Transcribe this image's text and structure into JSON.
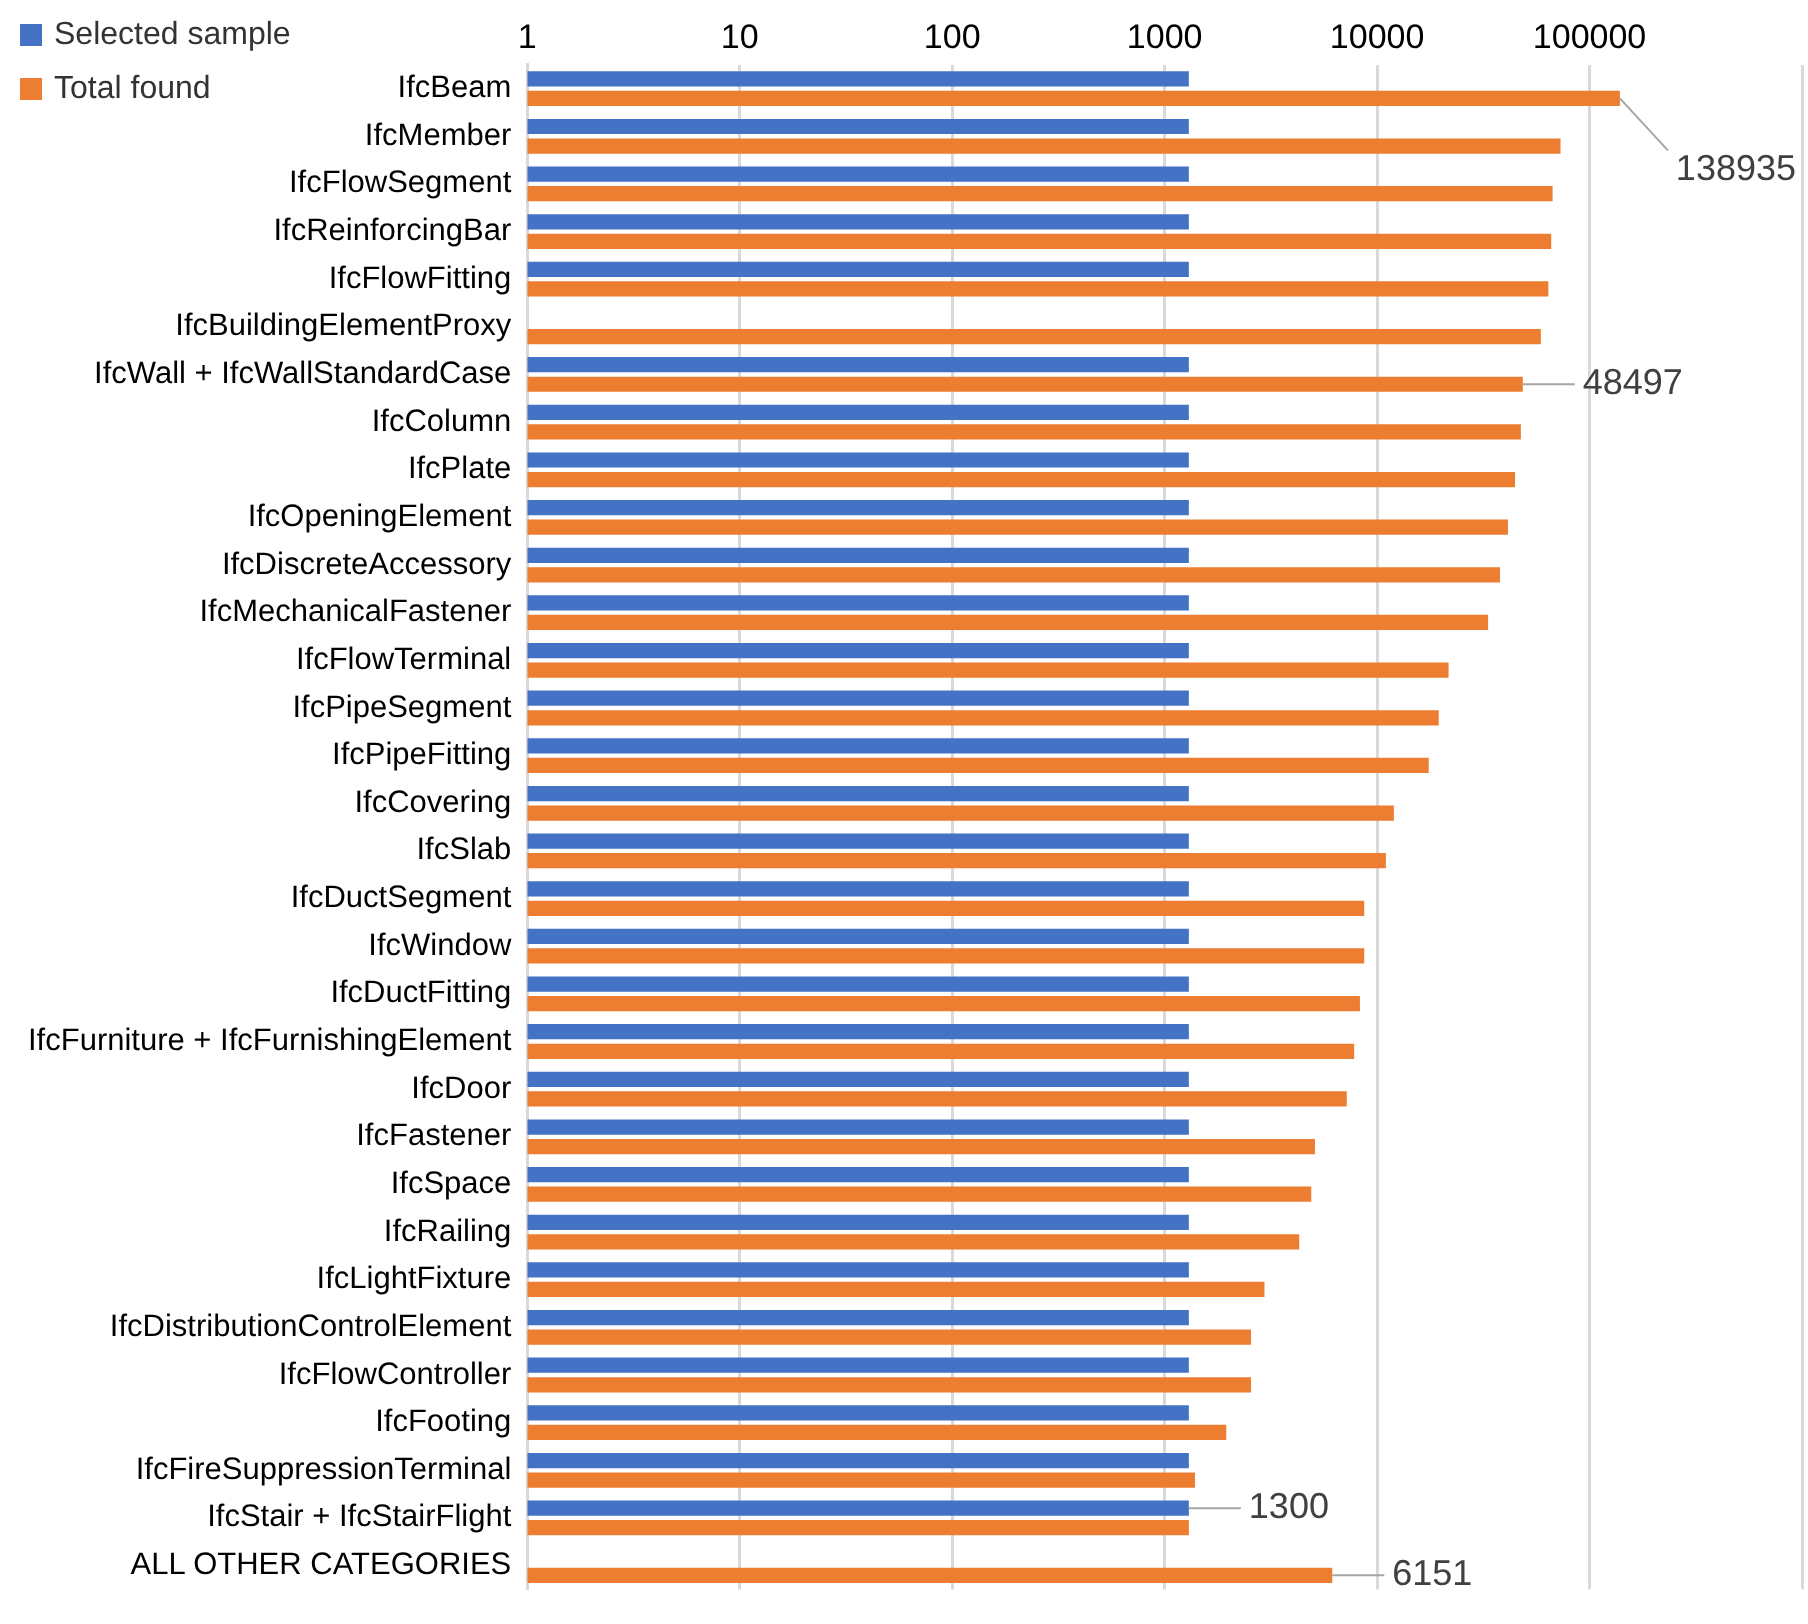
{
  "chart_data": {
    "type": "bar",
    "orientation": "horizontal",
    "log": "x",
    "legend": "top left",
    "grid": "x",
    "categories": [
      "IfcBeam",
      "IfcMember",
      "IfcFlowSegment",
      "IfcReinforcingBar",
      "IfcFlowFitting",
      "IfcBuildingElementProxy",
      "IfcWall + IfcWallStandardCase",
      "IfcColumn",
      "IfcPlate",
      "IfcOpeningElement",
      "IfcDiscreteAccessory",
      "IfcMechanicalFastener",
      "IfcFlowTerminal",
      "IfcPipeSegment",
      "IfcPipeFitting",
      "IfcCovering",
      "IfcSlab",
      "IfcDuctSegment",
      "IfcWindow",
      "IfcDuctFitting",
      "IfcFurniture + IfcFurnishingElement",
      "IfcDoor",
      "IfcFastener",
      "IfcSpace",
      "IfcRailing",
      "IfcLightFixture",
      "IfcDistributionControlElement",
      "IfcFlowController",
      "IfcFooting",
      "IfcFireSuppressionTerminal",
      "IfcStair + IfcStairFlight",
      "ALL OTHER CATEGORIES"
    ],
    "xlim": [
      1,
      1000000
    ],
    "xticks": [
      1,
      10,
      100,
      1000,
      10000,
      100000,
      {
        "value": 1000000,
        "label": null
      }
    ],
    "series": [
      {
        "name": "Selected sample",
        "color": "#4472c4",
        "values": [
          1300,
          1300,
          1300,
          1300,
          1300,
          null,
          1300,
          1300,
          1300,
          1300,
          1300,
          1300,
          1300,
          1300,
          1300,
          1300,
          1300,
          1300,
          1300,
          1300,
          1300,
          1300,
          1300,
          1300,
          1300,
          1300,
          1300,
          1300,
          1300,
          1300,
          1300,
          null
        ],
        "value_labels": [
          null,
          null,
          null,
          null,
          null,
          null,
          null,
          null,
          null,
          null,
          null,
          null,
          null,
          null,
          null,
          null,
          null,
          null,
          null,
          null,
          null,
          null,
          null,
          null,
          null,
          null,
          null,
          null,
          null,
          null,
          "1300",
          null
        ]
      },
      {
        "name": "Total found",
        "color": "#ed7d31",
        "values": [
          138935,
          73000,
          67000,
          66000,
          64000,
          59000,
          48497,
          47500,
          44600,
          41300,
          37900,
          33300,
          21700,
          19500,
          17500,
          12000,
          11000,
          8700,
          8700,
          8300,
          7800,
          7200,
          5100,
          4900,
          4300,
          2950,
          2550,
          2550,
          1950,
          1390,
          1300,
          6151
        ],
        "value_labels": [
          "138935",
          null,
          null,
          null,
          null,
          null,
          "48497",
          null,
          null,
          null,
          null,
          null,
          null,
          null,
          null,
          null,
          null,
          null,
          null,
          null,
          null,
          null,
          null,
          null,
          null,
          null,
          null,
          null,
          null,
          null,
          null,
          "6151"
        ]
      }
    ]
  }
}
